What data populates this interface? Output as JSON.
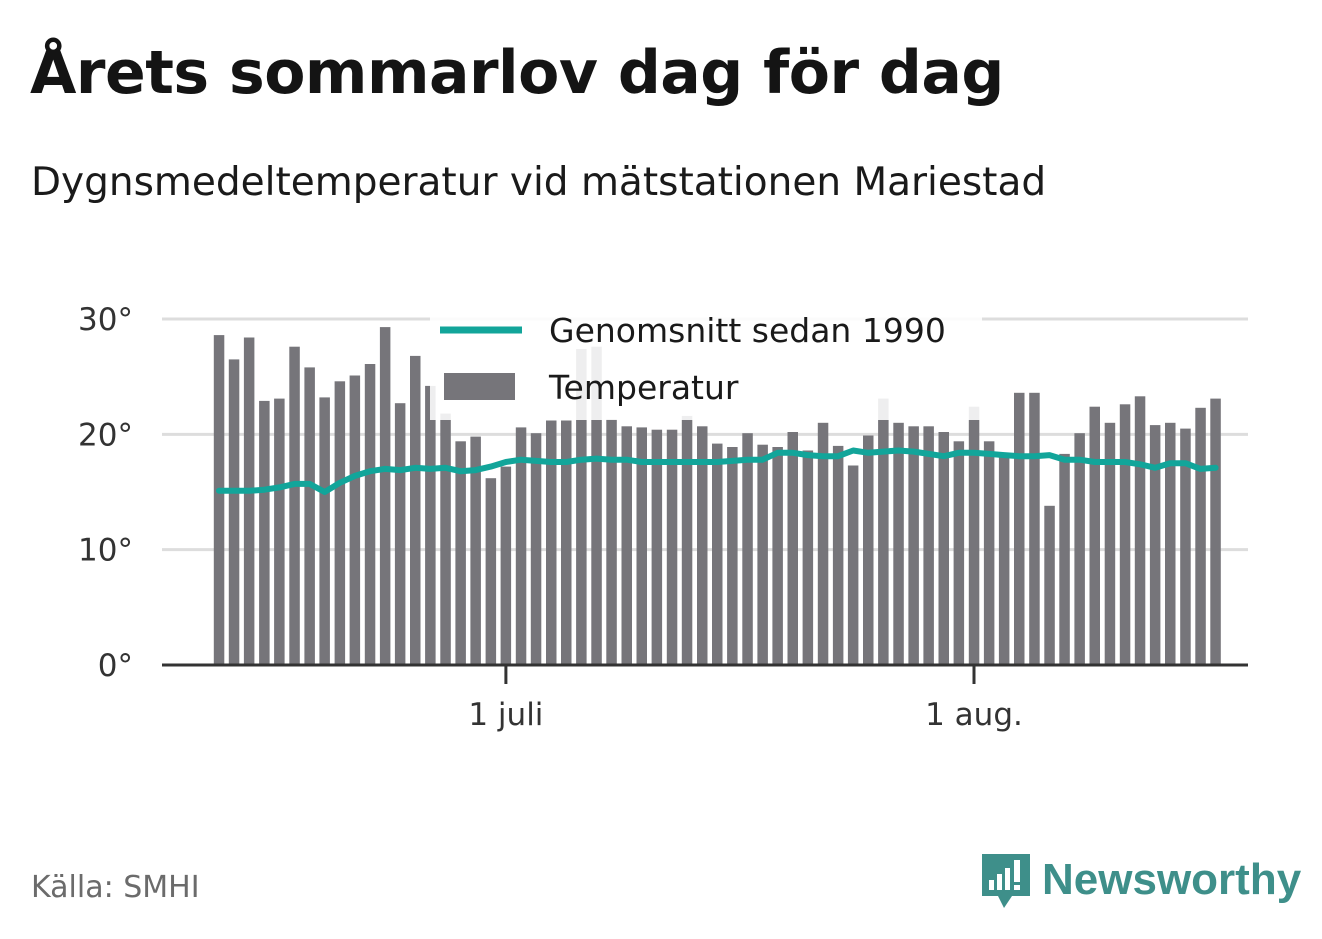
{
  "title": "Årets sommarlov dag för dag",
  "subtitle": "Dygnsmedeltemperatur vid mätstationen Mariestad",
  "source": "Källa: SMHI",
  "brand": {
    "name": "Newsworthy",
    "icon": "newsworthy-logo-icon",
    "color": "#3e8f8a"
  },
  "chart_data": {
    "type": "bar",
    "ylim": [
      0,
      30
    ],
    "y_ticks": [
      {
        "value": 0,
        "label": "0°"
      },
      {
        "value": 10,
        "label": "10°"
      },
      {
        "value": 20,
        "label": "20°"
      },
      {
        "value": 30,
        "label": "30°"
      }
    ],
    "x_ticks": [
      {
        "date": "2018-07-01",
        "label": "1 juli"
      },
      {
        "date": "2018-08-01",
        "label": "1 aug."
      }
    ],
    "grid": true,
    "legend_position": "top-center",
    "colors": {
      "bars": "#76757a",
      "line": "#12a59a",
      "grid": "#dddddd",
      "axis": "#333333"
    },
    "x": [
      "2018-06-12",
      "2018-06-13",
      "2018-06-14",
      "2018-06-15",
      "2018-06-16",
      "2018-06-17",
      "2018-06-18",
      "2018-06-19",
      "2018-06-20",
      "2018-06-21",
      "2018-06-22",
      "2018-06-23",
      "2018-06-24",
      "2018-06-25",
      "2018-06-26",
      "2018-06-27",
      "2018-06-28",
      "2018-06-29",
      "2018-06-30",
      "2018-07-01",
      "2018-07-02",
      "2018-07-03",
      "2018-07-04",
      "2018-07-05",
      "2018-07-06",
      "2018-07-07",
      "2018-07-08",
      "2018-07-09",
      "2018-07-10",
      "2018-07-11",
      "2018-07-12",
      "2018-07-13",
      "2018-07-14",
      "2018-07-15",
      "2018-07-16",
      "2018-07-17",
      "2018-07-18",
      "2018-07-19",
      "2018-07-20",
      "2018-07-21",
      "2018-07-22",
      "2018-07-23",
      "2018-07-24",
      "2018-07-25",
      "2018-07-26",
      "2018-07-27",
      "2018-07-28",
      "2018-07-29",
      "2018-07-30",
      "2018-07-31",
      "2018-08-01",
      "2018-08-02",
      "2018-08-03",
      "2018-08-04",
      "2018-08-05",
      "2018-08-06",
      "2018-08-07",
      "2018-08-08",
      "2018-08-09",
      "2018-08-10",
      "2018-08-11",
      "2018-08-12",
      "2018-08-13",
      "2018-08-14",
      "2018-08-15",
      "2018-08-16",
      "2018-08-17"
    ],
    "series": [
      {
        "name": "Temperatur",
        "type": "bar",
        "values": [
          28.6,
          26.5,
          28.4,
          22.9,
          23.1,
          27.6,
          25.8,
          23.2,
          24.6,
          25.1,
          26.1,
          29.3,
          22.7,
          26.8,
          24.2,
          21.8,
          19.4,
          19.8,
          16.2,
          17.2,
          20.6,
          20.1,
          21.2,
          21.2,
          27.4,
          27.6,
          21.3,
          20.7,
          20.6,
          20.4,
          20.4,
          21.6,
          20.7,
          19.2,
          18.9,
          20.1,
          19.1,
          18.9,
          20.2,
          18.6,
          21.0,
          19.0,
          17.3,
          19.9,
          23.1,
          21.0,
          20.7,
          20.7,
          20.2,
          19.4,
          22.4,
          19.4,
          18.0,
          23.6,
          23.6,
          13.8,
          18.3,
          20.1,
          22.4,
          21.0,
          22.6,
          23.3,
          20.8,
          21.0,
          20.5,
          22.3,
          23.1
        ]
      },
      {
        "name": "Genomsnitt sedan 1990",
        "type": "line",
        "values": [
          15.1,
          15.1,
          15.1,
          15.2,
          15.4,
          15.7,
          15.7,
          15.0,
          15.8,
          16.4,
          16.8,
          17.0,
          16.9,
          17.1,
          17.0,
          17.1,
          16.8,
          16.9,
          17.2,
          17.6,
          17.8,
          17.7,
          17.6,
          17.6,
          17.8,
          17.9,
          17.8,
          17.8,
          17.6,
          17.6,
          17.6,
          17.6,
          17.6,
          17.6,
          17.7,
          17.8,
          17.8,
          18.4,
          18.4,
          18.2,
          18.1,
          18.1,
          18.6,
          18.4,
          18.5,
          18.6,
          18.5,
          18.3,
          18.1,
          18.4,
          18.4,
          18.3,
          18.2,
          18.1,
          18.1,
          18.2,
          17.8,
          17.8,
          17.6,
          17.6,
          17.6,
          17.4,
          17.1,
          17.5,
          17.5,
          17.0,
          17.1
        ]
      }
    ]
  }
}
